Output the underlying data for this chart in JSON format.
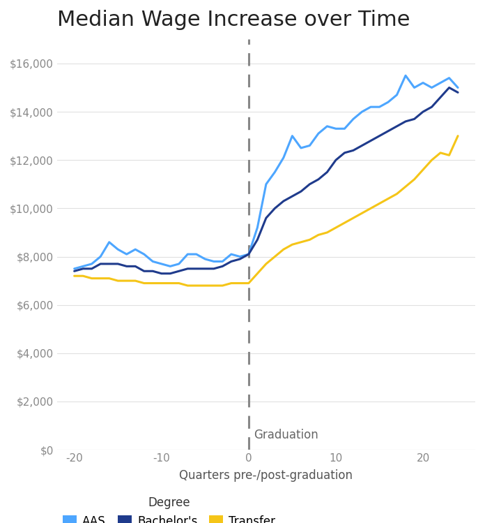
{
  "title": "Median Wage Increase over Time",
  "xlabel": "Quarters pre-/post-graduation",
  "graduation_label": "Graduation",
  "xlim": [
    -22,
    26
  ],
  "ylim": [
    0,
    17000
  ],
  "yticks": [
    0,
    2000,
    4000,
    6000,
    8000,
    10000,
    12000,
    14000,
    16000
  ],
  "ytick_labels": [
    "$0",
    "$2,000",
    "$4,000",
    "$6,000",
    "$8,000",
    "$10,000",
    "$12,000",
    "$14,000",
    "$16,000"
  ],
  "xticks": [
    -20,
    -10,
    0,
    10,
    20
  ],
  "vline_x": 0,
  "colors": {
    "AAS": "#4da6ff",
    "Bachelor": "#1f3b8c",
    "Transfer": "#f5c518"
  },
  "line_width": 2.2,
  "AAS_x": [
    -20,
    -19,
    -18,
    -17,
    -16,
    -15,
    -14,
    -13,
    -12,
    -11,
    -10,
    -9,
    -8,
    -7,
    -6,
    -5,
    -4,
    -3,
    -2,
    -1,
    0,
    1,
    2,
    3,
    4,
    5,
    6,
    7,
    8,
    9,
    10,
    11,
    12,
    13,
    14,
    15,
    16,
    17,
    18,
    19,
    20,
    21,
    22,
    23,
    24
  ],
  "AAS_y": [
    7500,
    7600,
    7700,
    8000,
    8600,
    8300,
    8100,
    8300,
    8100,
    7800,
    7700,
    7600,
    7700,
    8100,
    8100,
    7900,
    7800,
    7800,
    8100,
    8000,
    8100,
    9200,
    11000,
    11500,
    12100,
    13000,
    12500,
    12600,
    13100,
    13400,
    13300,
    13300,
    13700,
    14000,
    14200,
    14200,
    14400,
    14700,
    15500,
    15000,
    15200,
    15000,
    15200,
    15400,
    15000
  ],
  "Bachelor_x": [
    -20,
    -19,
    -18,
    -17,
    -16,
    -15,
    -14,
    -13,
    -12,
    -11,
    -10,
    -9,
    -8,
    -7,
    -6,
    -5,
    -4,
    -3,
    -2,
    -1,
    0,
    1,
    2,
    3,
    4,
    5,
    6,
    7,
    8,
    9,
    10,
    11,
    12,
    13,
    14,
    15,
    16,
    17,
    18,
    19,
    20,
    21,
    22,
    23,
    24
  ],
  "Bachelor_y": [
    7400,
    7500,
    7500,
    7700,
    7700,
    7700,
    7600,
    7600,
    7400,
    7400,
    7300,
    7300,
    7400,
    7500,
    7500,
    7500,
    7500,
    7600,
    7800,
    7900,
    8100,
    8700,
    9600,
    10000,
    10300,
    10500,
    10700,
    11000,
    11200,
    11500,
    12000,
    12300,
    12400,
    12600,
    12800,
    13000,
    13200,
    13400,
    13600,
    13700,
    14000,
    14200,
    14600,
    15000,
    14800
  ],
  "Transfer_x": [
    -20,
    -19,
    -18,
    -17,
    -16,
    -15,
    -14,
    -13,
    -12,
    -11,
    -10,
    -9,
    -8,
    -7,
    -6,
    -5,
    -4,
    -3,
    -2,
    -1,
    0,
    1,
    2,
    3,
    4,
    5,
    6,
    7,
    8,
    9,
    10,
    11,
    12,
    13,
    14,
    15,
    16,
    17,
    18,
    19,
    20,
    21,
    22,
    23,
    24
  ],
  "Transfer_y": [
    7200,
    7200,
    7100,
    7100,
    7100,
    7000,
    7000,
    7000,
    6900,
    6900,
    6900,
    6900,
    6900,
    6800,
    6800,
    6800,
    6800,
    6800,
    6900,
    6900,
    6900,
    7300,
    7700,
    8000,
    8300,
    8500,
    8600,
    8700,
    8900,
    9000,
    9200,
    9400,
    9600,
    9800,
    10000,
    10200,
    10400,
    10600,
    10900,
    11200,
    11600,
    12000,
    12300,
    12200,
    13000
  ],
  "bg_color": "#ffffff",
  "grid_color": "#e0e0e0",
  "tick_color": "#888888",
  "vline_color": "#888888",
  "title_fontsize": 22,
  "label_fontsize": 12,
  "tick_fontsize": 11,
  "legend_fontsize": 12
}
